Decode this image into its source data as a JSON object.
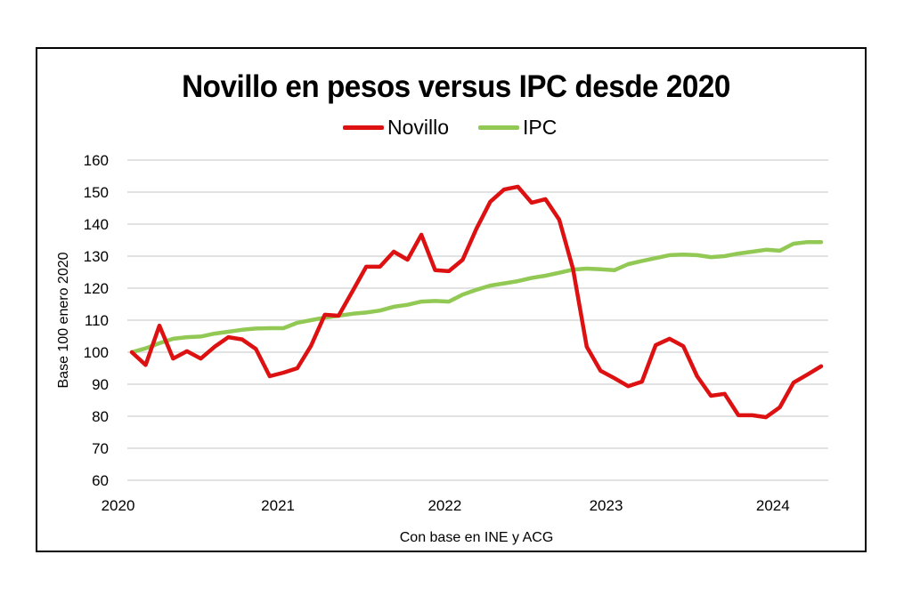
{
  "chart_data": {
    "type": "line",
    "title": "Novillo en pesos versus IPC desde 2020",
    "xlabel": "Con base en INE y ACG",
    "ylabel": "Base 100 enero 2020",
    "ylim": [
      60,
      160
    ],
    "yticks": [
      60,
      70,
      80,
      90,
      100,
      110,
      120,
      130,
      140,
      150,
      160
    ],
    "grid": "horizontal",
    "legend_position": "top-center",
    "x_start": "2020-01",
    "x_frequency": "monthly",
    "x_tick_labels": [
      {
        "label": "2020",
        "month_index": -1
      },
      {
        "label": "2021",
        "month_index": 10.6
      },
      {
        "label": "2022",
        "month_index": 22.7
      },
      {
        "label": "2023",
        "month_index": 34.4
      },
      {
        "label": "2024",
        "month_index": 46.5
      }
    ],
    "series": [
      {
        "name": "Novillo",
        "color": "#DD1111",
        "values": [
          100,
          96,
          108.3,
          98,
          100.3,
          98,
          101.7,
          104.7,
          104,
          101,
          92.5,
          93.6,
          95,
          102,
          111.7,
          111.4,
          119,
          126.7,
          126.7,
          131.4,
          128.9,
          136.7,
          125.6,
          125.3,
          128.9,
          138.6,
          147,
          150.8,
          151.7,
          146.7,
          147.8,
          141.4,
          126,
          101.7,
          94.2,
          91.9,
          89.4,
          90.8,
          102.2,
          104.2,
          101.9,
          92.5,
          86.4,
          87,
          80.3,
          80.3,
          79.7,
          82.8,
          90.5,
          93,
          95.6
        ]
      },
      {
        "name": "IPC",
        "color": "#92C955",
        "values": [
          100,
          101.2,
          102.8,
          104.2,
          104.7,
          104.9,
          105.8,
          106.4,
          107,
          107.4,
          107.5,
          107.5,
          109.2,
          110,
          110.8,
          111.4,
          112,
          112.4,
          113,
          114.2,
          114.8,
          115.8,
          116,
          115.8,
          118,
          119.5,
          120.8,
          121.5,
          122.2,
          123.2,
          123.9,
          124.8,
          125.8,
          126.1,
          125.9,
          125.6,
          127.5,
          128.5,
          129.4,
          130.3,
          130.5,
          130.3,
          129.7,
          130,
          130.8,
          131.4,
          132,
          131.7,
          133.9,
          134.4,
          134.4
        ]
      }
    ]
  },
  "legend": {
    "items": [
      {
        "label": "Novillo",
        "color": "#DD1111"
      },
      {
        "label": "IPC",
        "color": "#92C955"
      }
    ]
  }
}
